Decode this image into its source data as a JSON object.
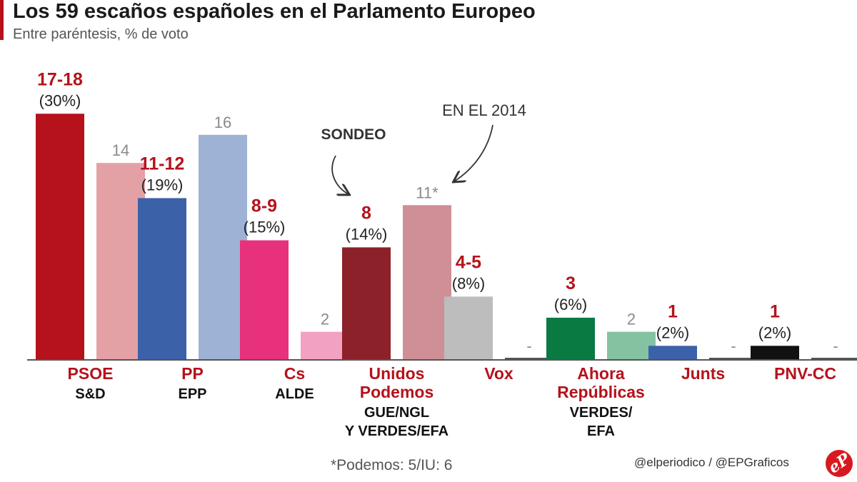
{
  "header": {
    "title": "Los 59 escaños españoles en el Parlamento Europeo",
    "subtitle": "Entre paréntesis, % de voto"
  },
  "colors": {
    "accent": "#b5121b",
    "label_red": "#b5121b",
    "label_grey": "#8a8a8a",
    "text_dark": "#222222",
    "baseline": "#555555"
  },
  "chart_data": {
    "type": "bar",
    "title": "Los 59 escaños españoles en el Parlamento Europeo",
    "subtitle": "Entre paréntesis, % de voto",
    "ylim": [
      0,
      19
    ],
    "grid": false,
    "series": [
      {
        "name": "SONDEO",
        "values": [
          17.5,
          11.5,
          8.5,
          8,
          4.5,
          3,
          1,
          1
        ]
      },
      {
        "name": "EN EL 2014",
        "values": [
          14,
          16,
          2,
          11,
          0,
          2,
          0,
          0
        ]
      }
    ],
    "categories": [
      {
        "party": "PSOE",
        "group": "S&D",
        "seats": "17-18",
        "pct": "(30%)",
        "prev": "14",
        "color_sondeo": "#b5121b",
        "color_2014": "#e3a1a6"
      },
      {
        "party": "PP",
        "group": "EPP",
        "seats": "11-12",
        "pct": "(19%)",
        "prev": "16",
        "color_sondeo": "#3b62a8",
        "color_2014": "#9eb2d6"
      },
      {
        "party": "Cs",
        "group": "ALDE",
        "seats": "8-9",
        "pct": "(15%)",
        "prev": "2",
        "color_sondeo": "#e8317c",
        "color_2014": "#f2a1c3"
      },
      {
        "party": "Unidos\nPodemos",
        "group": "GUE/NGL\nY VERDES/EFA",
        "seats": "8",
        "pct": "(14%)",
        "prev": "11*",
        "color_sondeo": "#8c2129",
        "color_2014": "#cf8f96"
      },
      {
        "party": "Vox",
        "group": "",
        "seats": "4-5",
        "pct": "(8%)",
        "prev": "-",
        "color_sondeo": "#bdbdbd",
        "color_2014": "#555555"
      },
      {
        "party": "Ahora\nRepúblicas",
        "group": "VERDES/\nEFA",
        "seats": "3",
        "pct": "(6%)",
        "prev": "2",
        "color_sondeo": "#0a7a43",
        "color_2014": "#84c2a2"
      },
      {
        "party": "Junts",
        "group": "",
        "seats": "1",
        "pct": "(2%)",
        "prev": "-",
        "color_sondeo": "#3b62a8",
        "color_2014": "#555555"
      },
      {
        "party": "PNV-CC",
        "group": "",
        "seats": "1",
        "pct": "(2%)",
        "prev": "-",
        "color_sondeo": "#111111",
        "color_2014": "#555555"
      }
    ],
    "annotations": {
      "sondeo": "SONDEO",
      "previous": "EN EL 2014"
    }
  },
  "footer": {
    "footnote": "*Podemos: 5/IU: 6",
    "credit": "@elperiodico / @EPGraficos",
    "logo": "eP"
  }
}
